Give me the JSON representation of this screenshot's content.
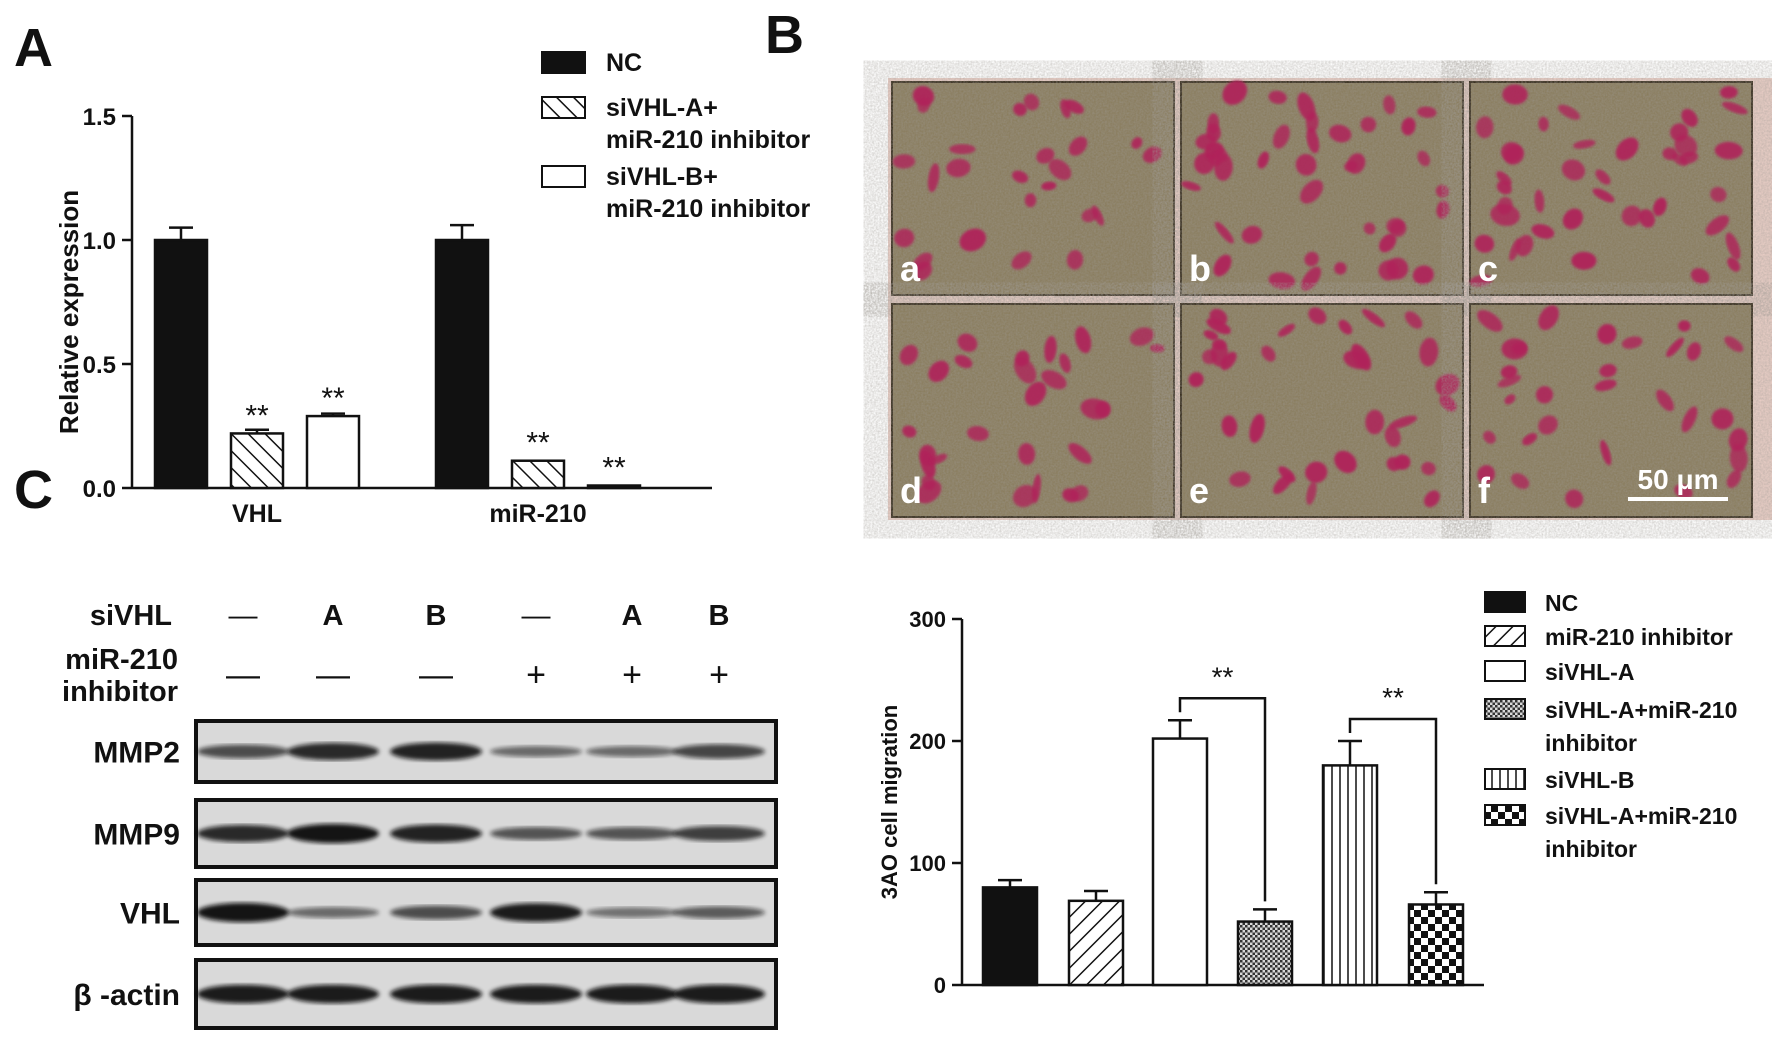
{
  "panels": {
    "A": "A",
    "B": "B",
    "C": "C"
  },
  "chart_data": [
    {
      "type": "bar",
      "panel": "A",
      "categories": [
        "VHL",
        "miR-210"
      ],
      "ylabel": "Relative expression",
      "ylim": [
        0,
        1.5
      ],
      "yticks": [
        "0.0",
        "0.5",
        "1.0",
        "1.5"
      ],
      "series": [
        {
          "name": "NC",
          "values": [
            1.0,
            1.0
          ],
          "errors": [
            0.05,
            0.06
          ],
          "pattern": "solid"
        },
        {
          "name": "siVHL-A+\nmiR-210 inhibitor",
          "values": [
            0.22,
            0.11
          ],
          "errors": [
            0.015,
            0.0
          ],
          "pattern": "diagonal-back",
          "marks": [
            "**",
            "**"
          ]
        },
        {
          "name": "siVHL-B+\nmiR-210 inhibitor",
          "values": [
            0.29,
            0.01
          ],
          "errors": [
            0.01,
            0.0
          ],
          "pattern": "white",
          "marks": [
            "**",
            "**"
          ]
        }
      ],
      "legend": "top-right",
      "grid": false
    },
    {
      "type": "bar",
      "panel": "C-lower",
      "categories": [
        "NC",
        "miR-210 inhibitor",
        "siVHL-A",
        "siVHL-A+miR-210\ninhibitor",
        "siVHL-B",
        "siVHL-A+miR-210\n inhibitor"
      ],
      "ylabel": "3AO cell migration",
      "ylim": [
        0,
        300
      ],
      "yticks": [
        "0",
        "100",
        "200",
        "300"
      ],
      "values": [
        80,
        69,
        202,
        52,
        180,
        66
      ],
      "errors": [
        6,
        8,
        15,
        10,
        20,
        10
      ],
      "patterns": [
        "solid",
        "diagonal",
        "white",
        "dots",
        "vertical",
        "checker"
      ],
      "significance": [
        {
          "from": 2,
          "to": 3,
          "label": "**"
        },
        {
          "from": 4,
          "to": 5,
          "label": "**"
        }
      ],
      "legend": "right",
      "grid": false
    }
  ],
  "micrographs": {
    "labels": [
      "a",
      "b",
      "c",
      "d",
      "e",
      "f"
    ],
    "scalebar": "50 μm"
  },
  "western": {
    "row_sivhl_label": "siVHL",
    "row_inhibitor_label": "miR-210\ninhibitor",
    "sivhl": [
      "—",
      "A",
      "B",
      "—",
      "A",
      "B"
    ],
    "inhibitor": [
      "—",
      "—",
      "—",
      "+",
      "+",
      "+"
    ],
    "bands": [
      {
        "label": "MMP2",
        "intensity": [
          0.55,
          0.8,
          0.85,
          0.35,
          0.35,
          0.6
        ]
      },
      {
        "label": "MMP9",
        "intensity": [
          0.8,
          0.95,
          0.85,
          0.5,
          0.5,
          0.65
        ]
      },
      {
        "label": "VHL",
        "intensity": [
          0.95,
          0.35,
          0.55,
          0.9,
          0.3,
          0.45
        ]
      },
      {
        "label": "β -actin",
        "intensity": [
          0.9,
          0.9,
          0.9,
          0.9,
          0.9,
          0.9
        ]
      }
    ]
  },
  "colors": {
    "bar": "#111111",
    "micro_bg": "#8a7d5e",
    "micro_cell": "#b0205a",
    "micro_border": "#e8cdc5"
  }
}
